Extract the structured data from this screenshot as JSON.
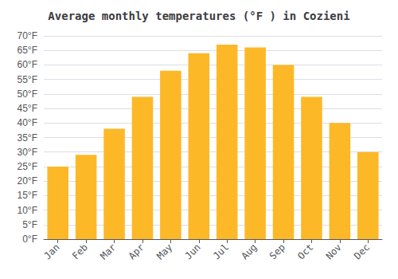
{
  "chart_data": {
    "type": "bar",
    "title": "Average monthly temperatures (°F ) in Cozieni",
    "categories": [
      "Jan",
      "Feb",
      "Mar",
      "Apr",
      "May",
      "Jun",
      "Jul",
      "Aug",
      "Sep",
      "Oct",
      "Nov",
      "Dec"
    ],
    "values": [
      25,
      29,
      38,
      49,
      58,
      64,
      67,
      66,
      60,
      49,
      40,
      30
    ],
    "color": "#FDB827",
    "ylim": [
      0,
      70
    ],
    "yticks": [
      {
        "value": 0,
        "label": "0°F"
      },
      {
        "value": 5,
        "label": "5°F"
      },
      {
        "value": 10,
        "label": "10°F"
      },
      {
        "value": 15,
        "label": "15°F"
      },
      {
        "value": 20,
        "label": "20°F"
      },
      {
        "value": 25,
        "label": "25°F"
      },
      {
        "value": 30,
        "label": "30°F"
      },
      {
        "value": 35,
        "label": "35°F"
      },
      {
        "value": 40,
        "label": "40°F"
      },
      {
        "value": 45,
        "label": "45°F"
      },
      {
        "value": 50,
        "label": "50°F"
      },
      {
        "value": 55,
        "label": "55°F"
      },
      {
        "value": 60,
        "label": "60°F"
      },
      {
        "value": 65,
        "label": "65°F"
      },
      {
        "value": 70,
        "label": "70°F"
      }
    ],
    "grid": true
  }
}
